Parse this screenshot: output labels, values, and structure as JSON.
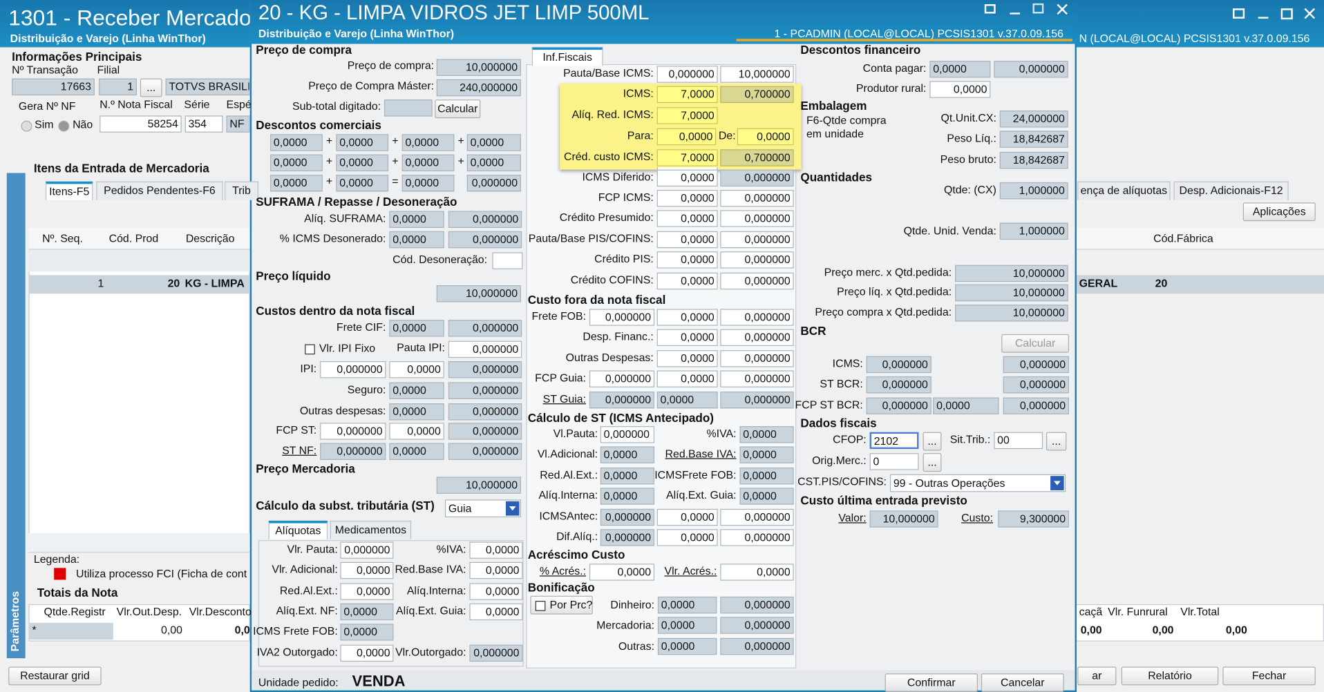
{
  "background": {
    "title": "1301 - Receber Mercado",
    "subtitle": "Distribuição e Varejo (Linha WinThor)",
    "status": "N (LOCAL@LOCAL)   PCSIS1301   v.37.0.09.156",
    "items": [
      "Informações Principais",
      "Nº Transação",
      "Filial",
      "17663",
      "1",
      "...",
      "TOTVS BRASILIA",
      "Gera Nº NF",
      "N.º Nota Fiscal",
      "Série",
      "Espé",
      "Sim",
      "Não",
      "58254",
      "354",
      "NF",
      "Itens da Entrada de Mercadoria",
      "Itens-F5",
      "Pedidos Pendentes-F6",
      "Trib",
      "Nº. Seq.",
      "Cód. Prod",
      "Descrição",
      "1",
      "20",
      "KG - LIMPA",
      "Legenda:",
      "Utiliza processo FCI (Ficha de cont",
      "Parâmetros",
      "Totais da Nota",
      "Qtde.Registr",
      "Vlr.Out.Desp.",
      "Vlr.Desconto",
      "*",
      "0,00",
      "0,0",
      "Restaurar grid",
      "ença de alíquotas",
      "Desp. Adicionais-F12",
      "Aplicações",
      "Cód.Fábrica",
      "GERAL",
      "20",
      "caçã",
      "Vlr. Funrural",
      "Vlr.Total",
      "0,00",
      "0,00",
      "0,00",
      "ar",
      "Relatório",
      "Fechar"
    ]
  },
  "dialog": {
    "title": "20 - KG - LIMPA VIDROS JET LIMP 500ML",
    "subtitle": "Distribuição e Varejo (Linha WinThor)",
    "status": "1 - PCADMIN (LOCAL@LOCAL)   PCSIS1301   v.37.0.09.156",
    "col1": [
      "Preço de compra",
      "Preço de compra:",
      "10,000000",
      "Preço de Compra Máster:",
      "240,000000",
      "Sub-total digitado:",
      "Calcular",
      "Descontos comerciais",
      "0,0000",
      "+",
      "0,0000",
      "+",
      "0,0000",
      "+",
      "0,0000",
      "0,0000",
      "+",
      "0,0000",
      "+",
      "0,0000",
      "+",
      "0,0000",
      "0,0000",
      "+",
      "0,0000",
      "=",
      "0,0000",
      "0,000000",
      "SUFRAMA / Repasse / Desoneração",
      "Alíq. SUFRAMA:",
      "0,0000",
      "0,000000",
      "% ICMS Desonerado:",
      "0,0000",
      "0,000000",
      "Cód. Desoneração:",
      "Preço líquido",
      "10,000000",
      "Custos dentro da nota fiscal",
      "Frete CIF:",
      "0,0000",
      "0,000000",
      "Vlr. IPI Fixo",
      "Pauta IPI:",
      "0,000000",
      "IPI:",
      "0,000000",
      "0,0000",
      "0,000000",
      "Seguro:",
      "0,0000",
      "0,000000",
      "Outras despesas:",
      "0,0000",
      "0,000000",
      "FCP ST:",
      "0,000000",
      "0,0000",
      "0,000000",
      "ST NF:",
      "0,000000",
      "0,0000",
      "0,000000",
      "Preço Mercadoria",
      "10,000000",
      "Cálculo da subst. tributária (ST)",
      "Guia",
      "Alíquotas",
      "Medicamentos",
      "Vlr. Pauta:",
      "0,000000",
      "%IVA:",
      "0,0000",
      "Vlr. Adicional:",
      "0,0000",
      "Red.Base IVA:",
      "0,0000",
      "Red.Al.Ext.:",
      "0,0000",
      "Alíq.Interna:",
      "0,0000",
      "Alíq.Ext. NF:",
      "0,0000",
      "Alíq.Ext. Guia:",
      "0,0000",
      "ICMS Frete FOB:",
      "0,0000",
      "IVA2 Outorgado:",
      "0,0000",
      "Vlr.Outorgado:",
      "0,000000",
      "Unidade pedido:",
      "VENDA"
    ],
    "col2": [
      "Inf.Fiscais",
      "Pauta/Base ICMS:",
      "0,000000",
      "10,000000",
      "ICMS:",
      "7,0000",
      "0,700000",
      "Alíq. Red. ICMS:",
      "7,0000",
      "Para:",
      "0,0000",
      "De:",
      "0,0000",
      "Créd. custo ICMS:",
      "7,0000",
      "0,700000",
      "ICMS Diferido:",
      "0,0000",
      "0,000000",
      "FCP ICMS:",
      "0,0000",
      "0,000000",
      "Crédito Presumido:",
      "0,0000",
      "0,000000",
      "Pauta/Base PIS/COFINS:",
      "0,0000",
      "0,000000",
      "Crédito PIS:",
      "0,0000",
      "0,000000",
      "Crédito COFINS:",
      "0,0000",
      "0,000000",
      "Custo fora da nota fiscal",
      "Frete FOB:",
      "0,000000",
      "0,0000",
      "0,000000",
      "Desp. Financ.:",
      "0,0000",
      "0,000000",
      "Outras Despesas:",
      "0,0000",
      "0,000000",
      "FCP Guia:",
      "0,000000",
      "0,0000",
      "0,000000",
      "ST Guia:",
      "0,000000",
      "0,0000",
      "0,000000",
      "Cálculo de ST (ICMS Antecipado)",
      "Vl.Pauta:",
      "0,000000",
      "%IVA:",
      "0,0000",
      "Vl.Adicional:",
      "0,0000",
      "Red.Base IVA:",
      "0,0000",
      "Red.Al.Ext.:",
      "0,0000",
      "ICMSFrete FOB:",
      "0,0000",
      "Alíq.Interna:",
      "0,0000",
      "Alíq.Ext. Guia:",
      "0,0000",
      "ICMSAntec:",
      "0,000000",
      "0,0000",
      "0,000000",
      "Dif.Alíq.:",
      "0,000000",
      "0,0000",
      "0,000000",
      "Acréscimo Custo",
      "% Acrés.:",
      "0,0000",
      "Vlr. Acrés.:",
      "0,0000",
      "Bonificação",
      "Por Prc?",
      "Dinheiro:",
      "0,0000",
      "0,000000",
      "Mercadoria:",
      "0,0000",
      "0,000000",
      "Outras:",
      "0,0000",
      "0,000000"
    ],
    "col3": [
      "Descontos financeiro",
      "Conta pagar:",
      "0,0000",
      "0,000000",
      "Produtor rural:",
      "0,0000",
      "Embalagem",
      "F6-Qtde compra",
      "em unidade",
      "Qt.Unit.CX:",
      "24,000000",
      "Peso Líq.:",
      "18,842687",
      "Peso bruto:",
      "18,842687",
      "Quantidades",
      "Qtde: (CX)",
      "1,000000",
      "Qtde. Unid. Venda:",
      "1,000000",
      "Preço merc. x Qtd.pedida:",
      "10,000000",
      "Preço líq. x Qtd.pedida:",
      "10,000000",
      "Preço compra x Qtd.pedida:",
      "10,000000",
      "BCR",
      "Calcular",
      "ICMS:",
      "0,000000",
      "0,000000",
      "ST BCR:",
      "0,000000",
      "0,000000",
      "FCP ST BCR:",
      "0,000000",
      "0,0000",
      "0,000000",
      "Dados fiscais",
      "CFOP:",
      "2102",
      "...",
      "Sit.Trib.:",
      "00",
      "...",
      "Orig.Merc.:",
      "0",
      "...",
      "CST.PIS/COFINS:",
      "99 - Outras Operações",
      "Custo última entrada previsto",
      "Valor:",
      "10,000000",
      "Custo:",
      "9,300000",
      "Confirmar",
      "Cancelar"
    ]
  }
}
